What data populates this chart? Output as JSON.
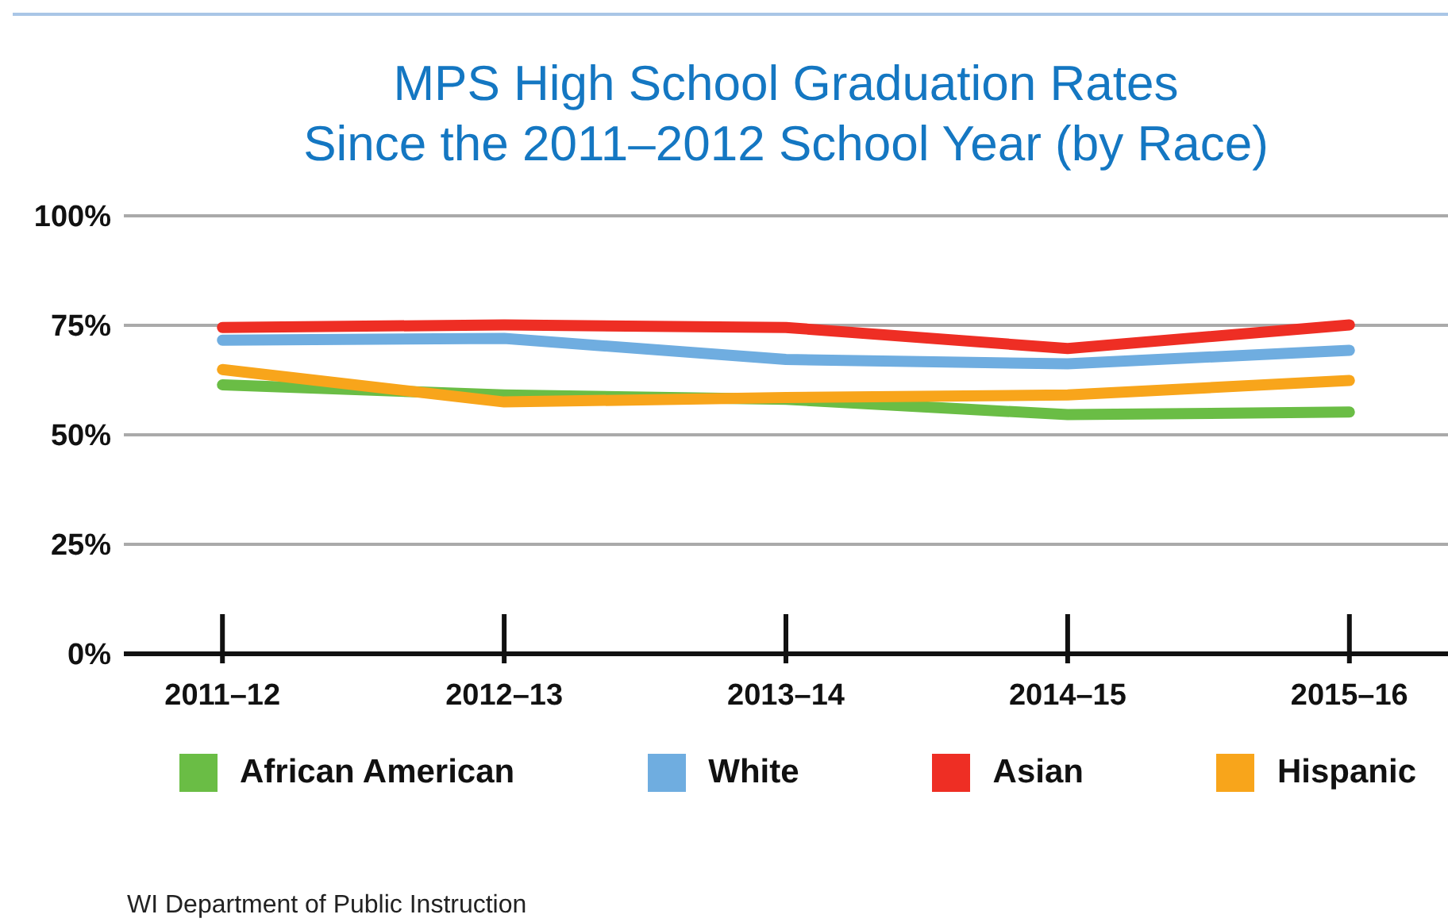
{
  "chart_data": {
    "type": "line",
    "title": "MPS High School Graduation Rates\nSince the 2011–2012 School Year (by Race)",
    "categories": [
      "2011–12",
      "2012–13",
      "2013–14",
      "2014–15",
      "2015–16"
    ],
    "series": [
      {
        "name": "African American",
        "color": "#6abd45",
        "values": [
          61.4,
          59.1,
          58.1,
          54.6,
          55.2
        ]
      },
      {
        "name": "White",
        "color": "#6fade0",
        "values": [
          71.6,
          72,
          67.2,
          66.2,
          69.3
        ]
      },
      {
        "name": "Asian",
        "color": "#ee2e24",
        "values": [
          74.5,
          75.1,
          74.5,
          69.7,
          75.1
        ]
      },
      {
        "name": "Hispanic",
        "color": "#f8a51b",
        "values": [
          64.9,
          57.5,
          58.5,
          59.1,
          62.4
        ]
      }
    ],
    "ylim": [
      0,
      100
    ],
    "yticks": [
      {
        "value": 0,
        "label": "0%"
      },
      {
        "value": 25,
        "label": "25%"
      },
      {
        "value": 50,
        "label": "50%"
      },
      {
        "value": 75,
        "label": "75%"
      },
      {
        "value": 100,
        "label": "100%"
      }
    ],
    "grid": "y",
    "legend": "bottom",
    "marker": "none",
    "line_style": "solid",
    "annotations": [
      "WI Department of Public Instruction"
    ]
  }
}
